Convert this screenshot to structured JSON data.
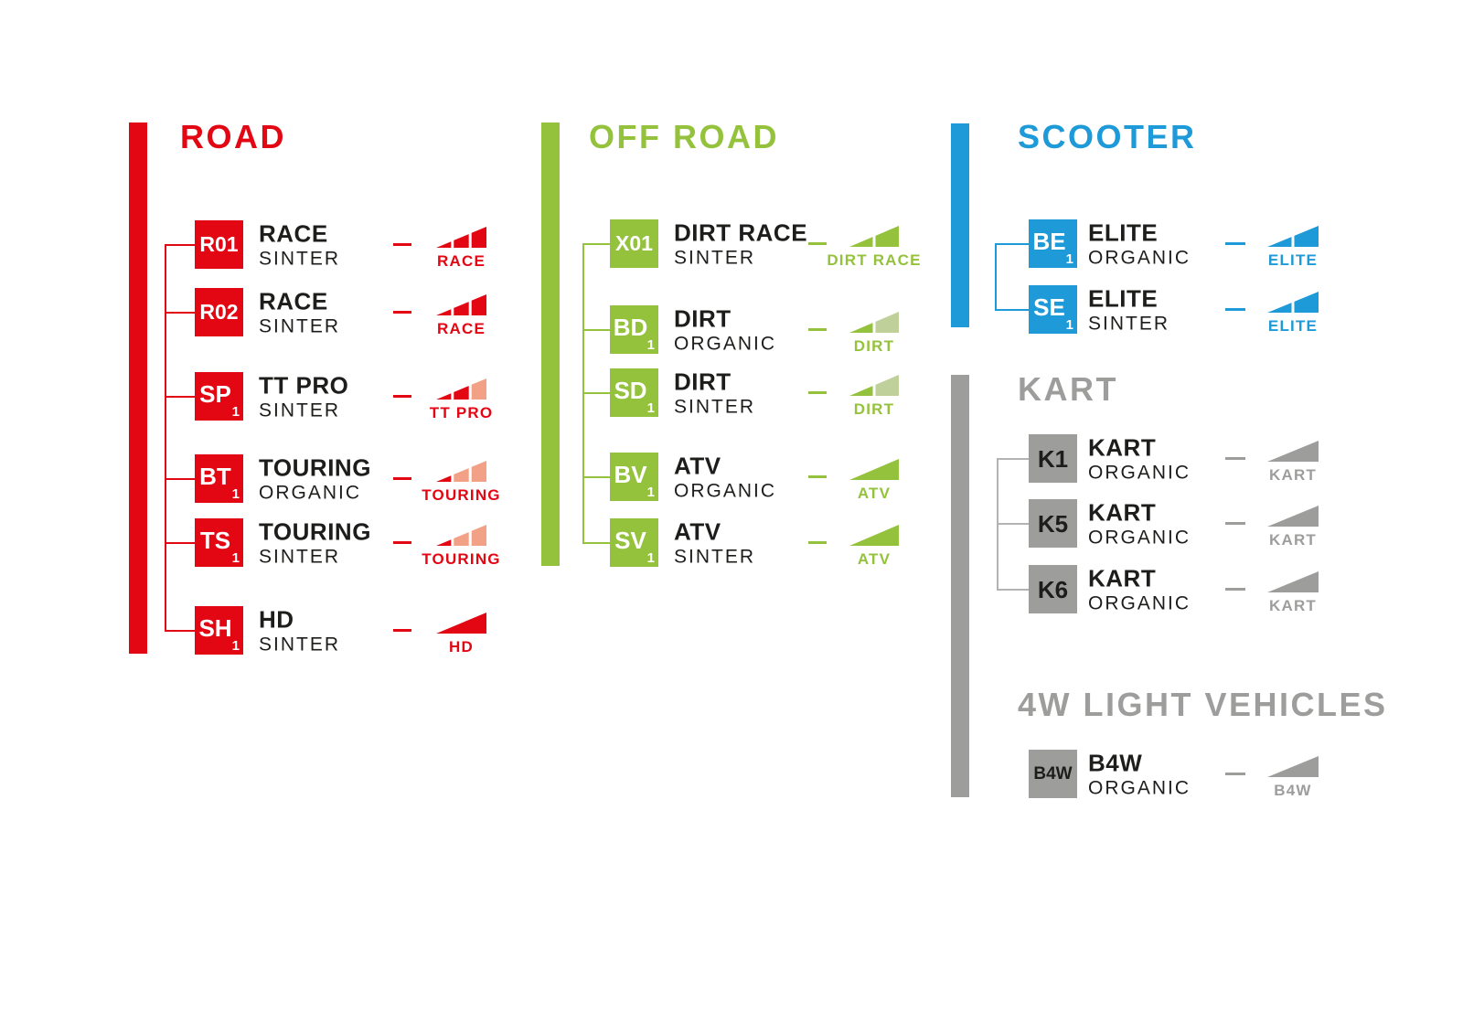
{
  "palette": {
    "red": "#E30613",
    "red_light": "#F2A186",
    "green": "#95C23C",
    "green_light": "#BFD09A",
    "blue": "#1D9AD7",
    "gray": "#9D9D9C",
    "tree_line_gray": "#B3B3B3",
    "text": "#1D1D1B",
    "badge_text_light": "#FFFFFF"
  },
  "sections": [
    {
      "id": "road",
      "title": "ROAD",
      "accent": "red",
      "items": [
        {
          "code": "R01",
          "sub": "",
          "name": "RACE",
          "material": "SINTER",
          "icon_label": "RACE",
          "icon_segments": [
            "red",
            "red",
            "red"
          ]
        },
        {
          "code": "R02",
          "sub": "",
          "name": "RACE",
          "material": "SINTER",
          "icon_label": "RACE",
          "icon_segments": [
            "red",
            "red",
            "red"
          ]
        },
        {
          "code": "SP",
          "sub": "1",
          "name": "TT PRO",
          "material": "SINTER",
          "icon_label": "TT PRO",
          "icon_segments": [
            "red",
            "red",
            "red_light"
          ]
        },
        {
          "code": "BT",
          "sub": "1",
          "name": "TOURING",
          "material": "ORGANIC",
          "icon_label": "TOURING",
          "icon_segments": [
            "red",
            "red_light",
            "red_light"
          ]
        },
        {
          "code": "TS",
          "sub": "1",
          "name": "TOURING",
          "material": "SINTER",
          "icon_label": "TOURING",
          "icon_segments": [
            "red",
            "red_light",
            "red_light"
          ]
        },
        {
          "code": "SH",
          "sub": "1",
          "name": "HD",
          "material": "SINTER",
          "icon_label": "HD",
          "icon_segments": [
            "red"
          ]
        }
      ]
    },
    {
      "id": "offroad",
      "title": "OFF ROAD",
      "accent": "green",
      "items": [
        {
          "code": "X01",
          "sub": "",
          "name": "DIRT RACE",
          "material": "SINTER",
          "icon_label": "DIRT RACE",
          "icon_segments": [
            "green",
            "green"
          ]
        },
        {
          "code": "BD",
          "sub": "1",
          "name": "DIRT",
          "material": "ORGANIC",
          "icon_label": "DIRT",
          "icon_segments": [
            "green",
            "green_light"
          ]
        },
        {
          "code": "SD",
          "sub": "1",
          "name": "DIRT",
          "material": "SINTER",
          "icon_label": "DIRT",
          "icon_segments": [
            "green",
            "green_light"
          ]
        },
        {
          "code": "BV",
          "sub": "1",
          "name": "ATV",
          "material": "ORGANIC",
          "icon_label": "ATV",
          "icon_segments": [
            "green"
          ]
        },
        {
          "code": "SV",
          "sub": "1",
          "name": "ATV",
          "material": "SINTER",
          "icon_label": "ATV",
          "icon_segments": [
            "green"
          ]
        }
      ]
    },
    {
      "id": "scooter",
      "title": "SCOOTER",
      "accent": "blue",
      "items": [
        {
          "code": "BE",
          "sub": "1",
          "name": "ELITE",
          "material": "ORGANIC",
          "icon_label": "ELITE",
          "icon_segments": [
            "blue",
            "blue"
          ]
        },
        {
          "code": "SE",
          "sub": "1",
          "name": "ELITE",
          "material": "SINTER",
          "icon_label": "ELITE",
          "icon_segments": [
            "blue",
            "blue"
          ]
        }
      ]
    },
    {
      "id": "kart",
      "title": "KART",
      "accent": "gray",
      "items": [
        {
          "code": "K1",
          "sub": "",
          "name": "KART",
          "material": "ORGANIC",
          "icon_label": "KART",
          "icon_segments": [
            "gray"
          ]
        },
        {
          "code": "K5",
          "sub": "",
          "name": "KART",
          "material": "ORGANIC",
          "icon_label": "KART",
          "icon_segments": [
            "gray"
          ]
        },
        {
          "code": "K6",
          "sub": "",
          "name": "KART",
          "material": "ORGANIC",
          "icon_label": "KART",
          "icon_segments": [
            "gray"
          ]
        }
      ]
    },
    {
      "id": "fourw",
      "title": "4W LIGHT VEHICLES",
      "accent": "gray",
      "items": [
        {
          "code": "B4W",
          "sub": "",
          "name": "B4W",
          "material": "ORGANIC",
          "icon_label": "B4W",
          "icon_segments": [
            "gray"
          ]
        }
      ]
    }
  ]
}
